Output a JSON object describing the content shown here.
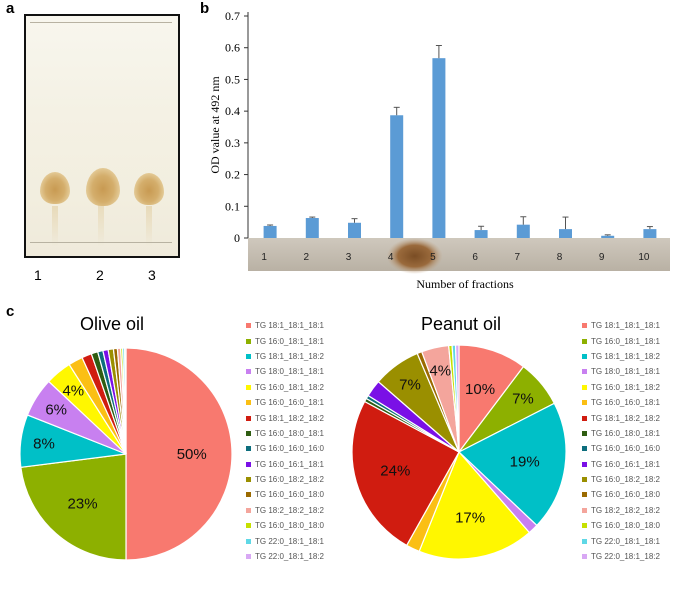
{
  "panels": {
    "a": "a",
    "b": "b",
    "c": "c"
  },
  "tlc": {
    "lanes": [
      "1",
      "2",
      "3"
    ]
  },
  "chart_data": [
    {
      "type": "bar",
      "panel": "b",
      "categories": [
        "1",
        "2",
        "3",
        "4",
        "5",
        "6",
        "7",
        "8",
        "9",
        "10"
      ],
      "values": [
        0.038,
        0.063,
        0.048,
        0.387,
        0.567,
        0.025,
        0.042,
        0.028,
        0.007,
        0.028
      ],
      "errors": [
        0.003,
        0.003,
        0.013,
        0.025,
        0.04,
        0.012,
        0.025,
        0.038,
        0.003,
        0.008
      ],
      "ylabel": "OD value at 492 nm",
      "xlabel": "Number of fractions",
      "yticks": [
        "0",
        "0.1",
        "0.2",
        "0.3",
        "0.4",
        "0.5",
        "0.6",
        "0.7"
      ],
      "ylim": [
        0,
        0.7
      ],
      "color": "#5b9bd5",
      "grid": false
    },
    {
      "type": "pie",
      "panel": "c",
      "title": "Olive oil",
      "slices": [
        {
          "label": "TG 18:1_18:1_18:1",
          "value": 50,
          "color": "#f8796f",
          "text": "50%"
        },
        {
          "label": "TG 16:0_18:1_18:1",
          "value": 23,
          "color": "#8db000",
          "text": "23%"
        },
        {
          "label": "TG 18:1_18:1_18:2",
          "value": 8,
          "color": "#00c0c7",
          "text": "8%"
        },
        {
          "label": "TG 18:0_18:1_18:1",
          "value": 6,
          "color": "#c880f0",
          "text": "6%"
        },
        {
          "label": "TG 16:0_18:1_18:2",
          "value": 4,
          "color": "#fff700",
          "text": "4%"
        },
        {
          "label": "TG 16:0_16:0_18:1",
          "value": 2.2,
          "color": "#fbbf14",
          "text": ""
        },
        {
          "label": "TG 18:1_18:2_18:2",
          "value": 1.5,
          "color": "#d01c10",
          "text": ""
        },
        {
          "label": "TG 16:0_18:0_18:1",
          "value": 1.0,
          "color": "#2f5d12",
          "text": ""
        },
        {
          "label": "TG 16:0_16:0_16:0",
          "value": 0.8,
          "color": "#0d6e7d",
          "text": ""
        },
        {
          "label": "TG 16:0_16:1_18:1",
          "value": 0.8,
          "color": "#7a10e6",
          "text": ""
        },
        {
          "label": "TG 16:0_18:2_18:2",
          "value": 0.8,
          "color": "#9a8f00",
          "text": ""
        },
        {
          "label": "TG 16:0_16:0_18:0",
          "value": 0.6,
          "color": "#9b6a00",
          "text": ""
        },
        {
          "label": "TG 18:2_18:2_18:2",
          "value": 0.5,
          "color": "#f4a59c",
          "text": ""
        },
        {
          "label": "TG 16:0_18:0_18:0",
          "value": 0.3,
          "color": "#c6e000",
          "text": ""
        },
        {
          "label": "TG 22:0_18:1_18:1",
          "value": 0.3,
          "color": "#5fd8e6",
          "text": ""
        },
        {
          "label": "TG 22:0_18:1_18:2",
          "value": 0.2,
          "color": "#d8a8f4",
          "text": ""
        }
      ]
    },
    {
      "type": "pie",
      "panel": "c",
      "title": "Peanut oil",
      "slices": [
        {
          "label": "TG 18:1_18:1_18:1",
          "value": 10,
          "color": "#f8796f",
          "text": "10%"
        },
        {
          "label": "TG 16:0_18:1_18:1",
          "value": 7,
          "color": "#8db000",
          "text": "7%"
        },
        {
          "label": "TG 18:1_18:1_18:2",
          "value": 19,
          "color": "#00c0c7",
          "text": "19%"
        },
        {
          "label": "TG 18:0_18:1_18:1",
          "value": 1.5,
          "color": "#c880f0",
          "text": ""
        },
        {
          "label": "TG 16:0_18:1_18:2",
          "value": 17,
          "color": "#fff700",
          "text": "17%"
        },
        {
          "label": "TG 16:0_16:0_18:1",
          "value": 2,
          "color": "#fbbf14",
          "text": ""
        },
        {
          "label": "TG 18:1_18:2_18:2",
          "value": 24,
          "color": "#d01c10",
          "text": "24%"
        },
        {
          "label": "TG 16:0_18:0_18:1",
          "value": 0.5,
          "color": "#2f5d12",
          "text": ""
        },
        {
          "label": "TG 16:0_16:0_16:0",
          "value": 0.5,
          "color": "#0d6e7d",
          "text": ""
        },
        {
          "label": "TG 16:0_16:1_18:1",
          "value": 2.5,
          "color": "#7a10e6",
          "text": ""
        },
        {
          "label": "TG 16:0_18:2_18:2",
          "value": 7,
          "color": "#9a8f00",
          "text": "7%"
        },
        {
          "label": "TG 16:0_16:0_18:0",
          "value": 0.7,
          "color": "#9b6a00",
          "text": ""
        },
        {
          "label": "TG 18:2_18:2_18:2",
          "value": 4,
          "color": "#f4a59c",
          "text": "4%"
        },
        {
          "label": "TG 16:0_18:0_18:0",
          "value": 0.5,
          "color": "#c6e000",
          "text": ""
        },
        {
          "label": "TG 22:0_18:1_18:1",
          "value": 0.5,
          "color": "#5fd8e6",
          "text": ""
        },
        {
          "label": "TG 22:0_18:1_18:2",
          "value": 0.5,
          "color": "#d8a8f4",
          "text": ""
        }
      ]
    }
  ]
}
